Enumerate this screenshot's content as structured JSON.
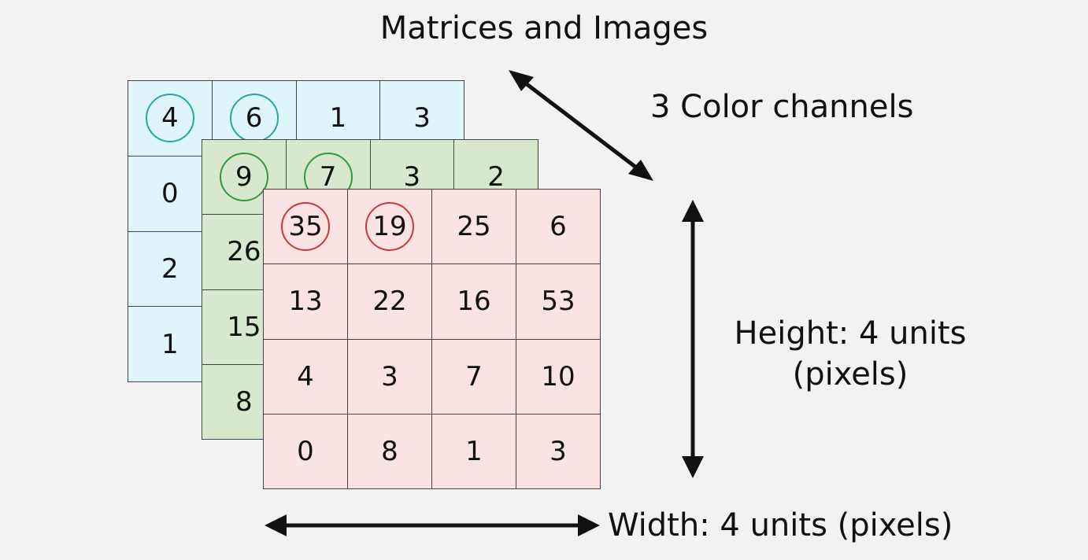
{
  "title": "Matrices and Images",
  "labels": {
    "depth": "3 Color channels",
    "height_line1": "Height: 4 units",
    "height_line2": "(pixels)",
    "width": "Width: 4 units (pixels)"
  },
  "colors": {
    "blue_channel": "#def6fa",
    "green_channel": "#d8e8cd",
    "red_channel": "#fce3e3",
    "blue_ring": "#2aa6a0",
    "green_ring": "#2f9a3e",
    "red_ring": "#c23a3a"
  },
  "channels": [
    {
      "id": "blue",
      "rows": [
        [
          "4",
          "6",
          "1",
          "3"
        ],
        [
          "0",
          "",
          "",
          ""
        ],
        [
          "2",
          "",
          "",
          ""
        ],
        [
          "1",
          "",
          "",
          ""
        ]
      ],
      "circled": [
        [
          0,
          0
        ],
        [
          0,
          1
        ]
      ]
    },
    {
      "id": "green",
      "rows": [
        [
          "9",
          "7",
          "3",
          "2"
        ],
        [
          "26",
          "",
          "",
          ""
        ],
        [
          "15",
          "",
          "",
          ""
        ],
        [
          "8",
          "",
          "",
          ""
        ]
      ],
      "circled": [
        [
          0,
          0
        ],
        [
          0,
          1
        ]
      ]
    },
    {
      "id": "red",
      "rows": [
        [
          "35",
          "19",
          "25",
          "6"
        ],
        [
          "13",
          "22",
          "16",
          "53"
        ],
        [
          "4",
          "3",
          "7",
          "10"
        ],
        [
          "0",
          "8",
          "1",
          "3"
        ]
      ],
      "circled": [
        [
          0,
          0
        ],
        [
          0,
          1
        ]
      ]
    }
  ]
}
